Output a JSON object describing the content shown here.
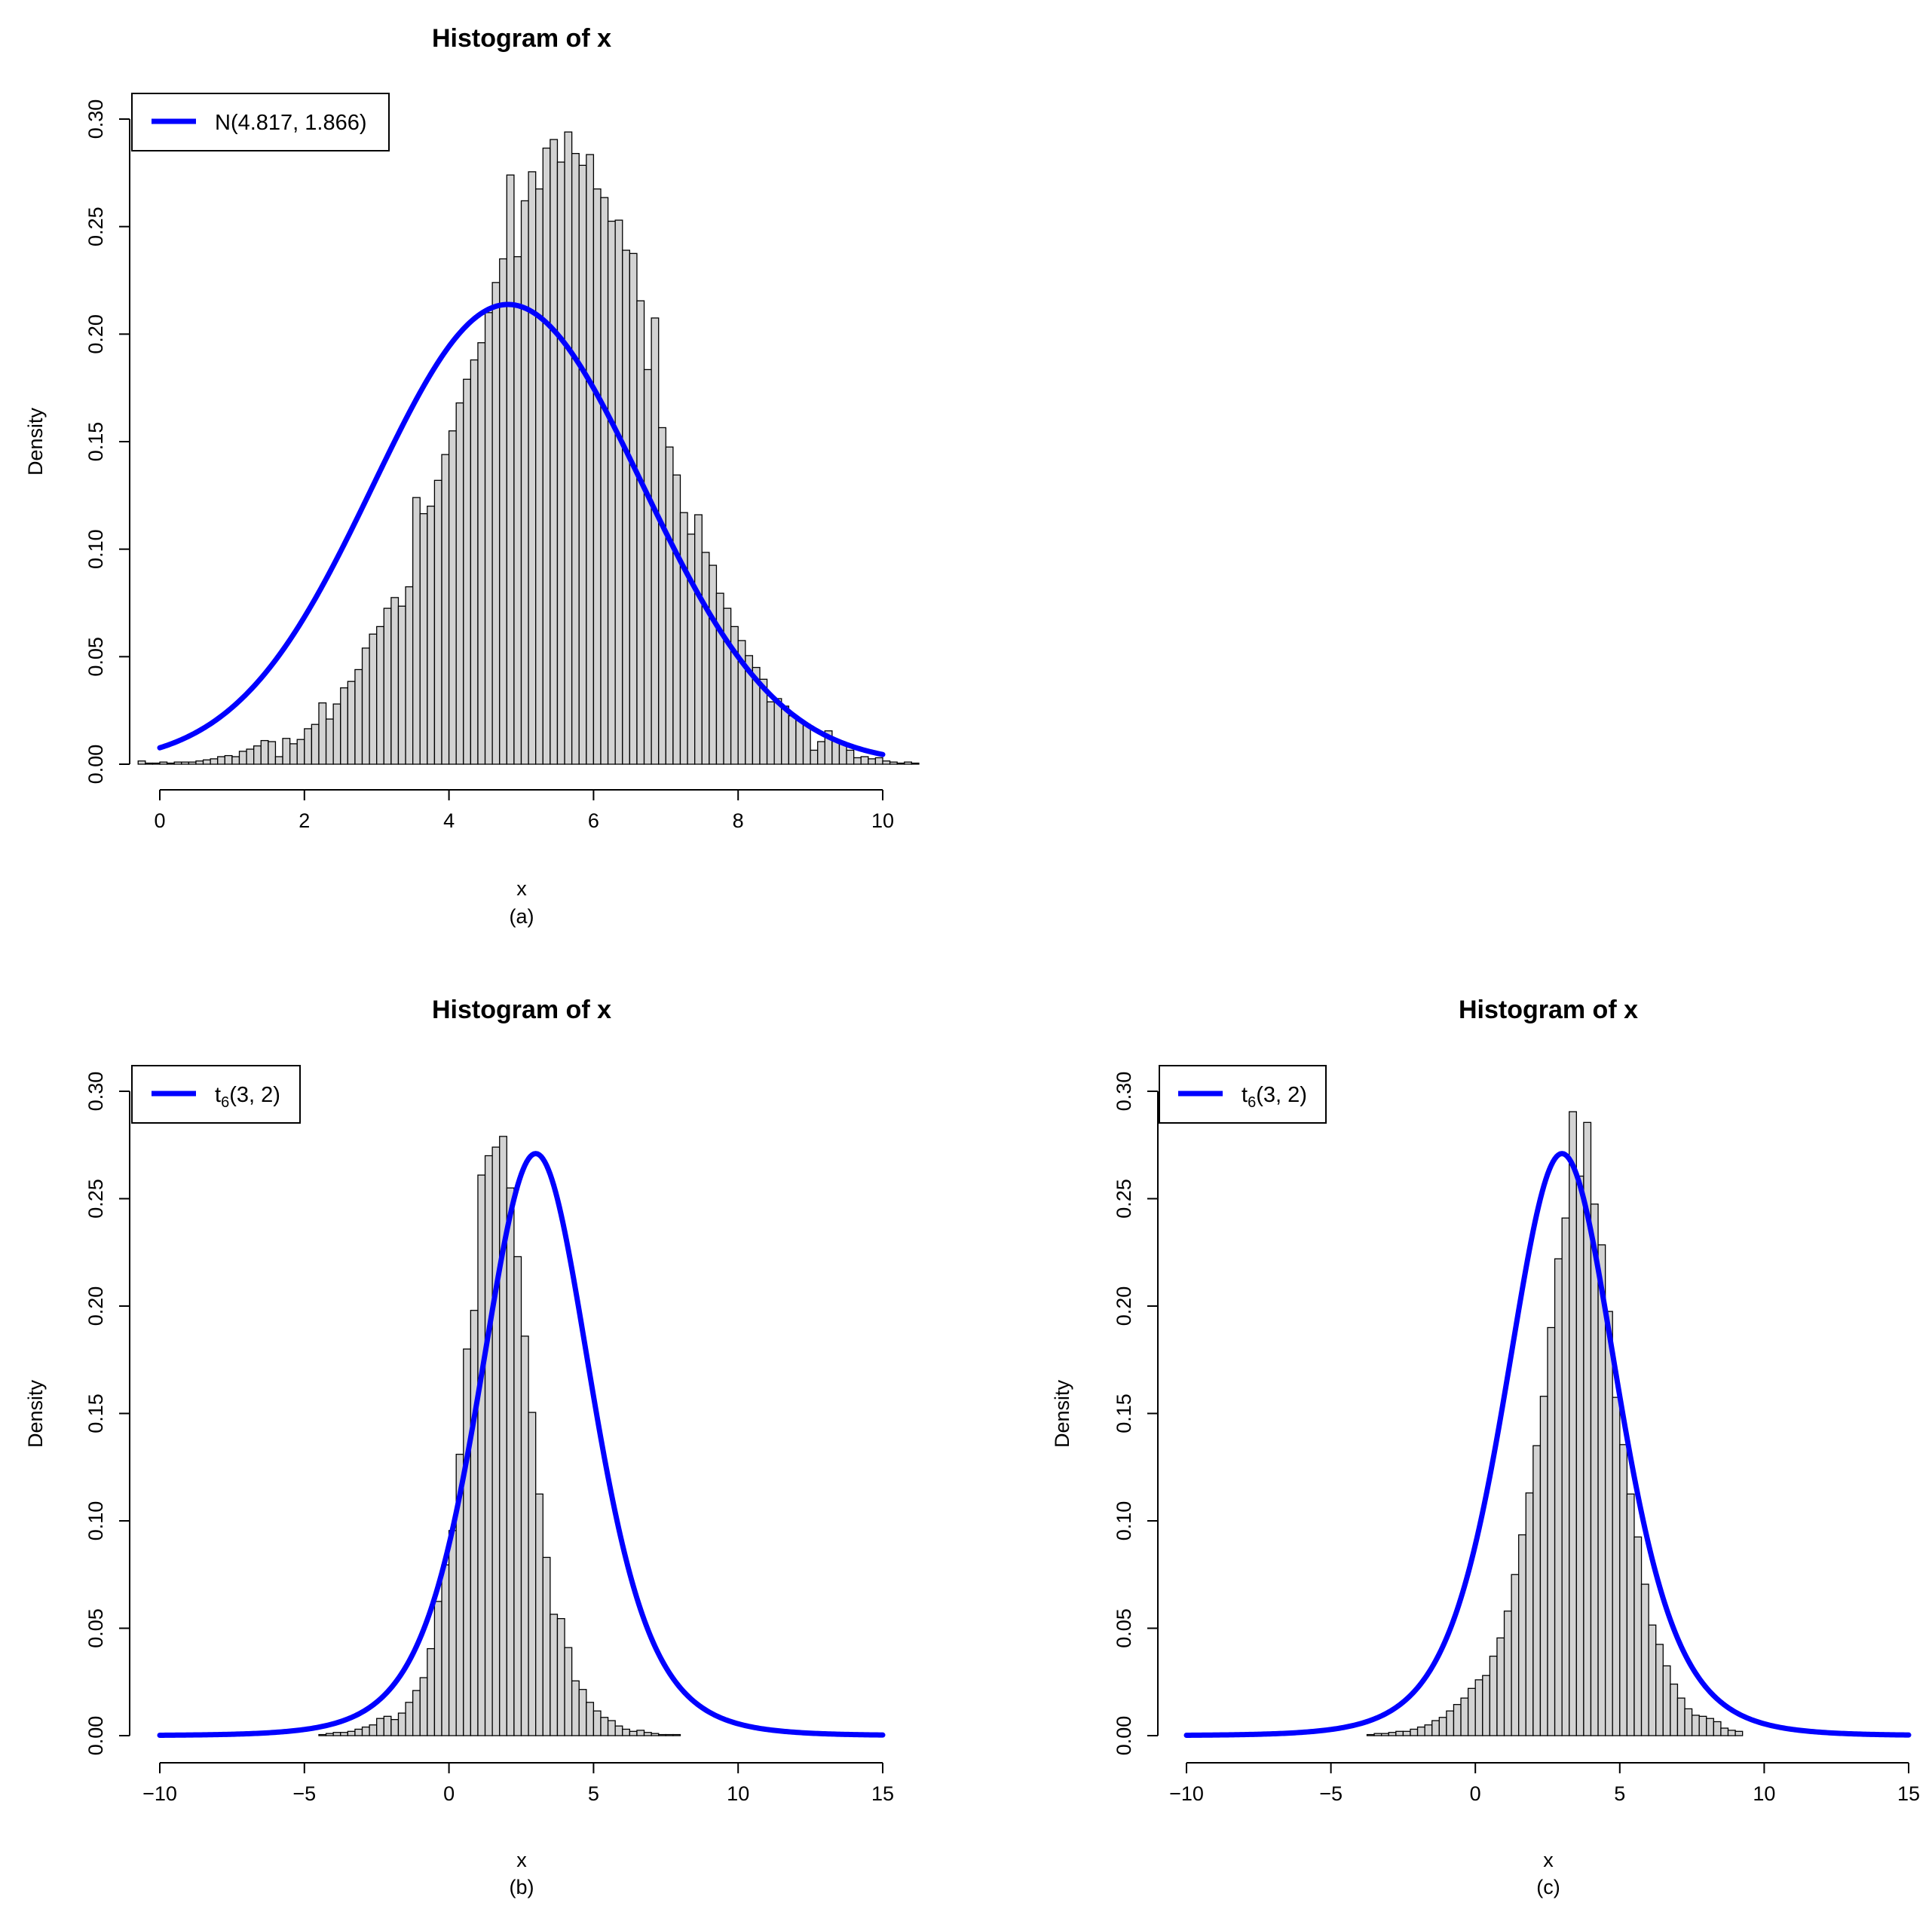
{
  "colors": {
    "bar_fill": "#d3d3d3",
    "bar_stroke": "#000000",
    "curve": "#0000ff",
    "axis": "#000000"
  },
  "chart_data": [
    {
      "panel": "a",
      "type": "bar",
      "title": "Histogram of x",
      "xlabel": "x",
      "ylabel": "Density",
      "caption": "(a)",
      "xlim": [
        0,
        10
      ],
      "ylim": [
        0,
        0.3
      ],
      "xticks": [
        0,
        2,
        4,
        6,
        8,
        10
      ],
      "xtick_labels": [
        "0",
        "2",
        "4",
        "6",
        "8",
        "10"
      ],
      "yticks": [
        0,
        0.05,
        0.1,
        0.15,
        0.2,
        0.25,
        0.3
      ],
      "ytick_labels": [
        "0.00",
        "0.05",
        "0.10",
        "0.15",
        "0.20",
        "0.25",
        "0.30"
      ],
      "legend": {
        "label_main": "N(4.817, 1.866)",
        "label_sub": "",
        "label_tail": "",
        "position": "top-left"
      },
      "bins": {
        "start": -0.3,
        "width": 0.1,
        "values": [
          0.0015,
          0.0005,
          0.0005,
          0.001,
          0.0005,
          0.001,
          0.001,
          0.001,
          0.0015,
          0.002,
          0.0025,
          0.0035,
          0.004,
          0.0035,
          0.006,
          0.007,
          0.0085,
          0.011,
          0.0105,
          0.0035,
          0.012,
          0.0095,
          0.0115,
          0.0165,
          0.0185,
          0.0285,
          0.021,
          0.028,
          0.0355,
          0.0385,
          0.044,
          0.054,
          0.0605,
          0.064,
          0.0725,
          0.0775,
          0.0735,
          0.0825,
          0.124,
          0.1165,
          0.12,
          0.132,
          0.144,
          0.155,
          0.168,
          0.179,
          0.188,
          0.196,
          0.21,
          0.224,
          0.235,
          0.274,
          0.236,
          0.262,
          0.2755,
          0.2675,
          0.2865,
          0.2905,
          0.28,
          0.294,
          0.284,
          0.2785,
          0.2835,
          0.2675,
          0.2635,
          0.2525,
          0.253,
          0.239,
          0.2375,
          0.2155,
          0.1835,
          0.2075,
          0.1565,
          0.1475,
          0.1345,
          0.117,
          0.107,
          0.116,
          0.0985,
          0.0925,
          0.0795,
          0.0725,
          0.064,
          0.0575,
          0.0505,
          0.045,
          0.0395,
          0.029,
          0.0305,
          0.027,
          0.0225,
          0.0205,
          0.0185,
          0.0065,
          0.0105,
          0.0155,
          0.011,
          0.0095,
          0.0065,
          0.003,
          0.0035,
          0.0025,
          0.003,
          0.0015,
          0.001,
          0.0005,
          0.001,
          0.0005
        ]
      },
      "curve": {
        "dist": "normal",
        "mean": 4.817,
        "sd": 1.866,
        "from": 0,
        "to": 10
      }
    },
    {
      "panel": "b",
      "type": "bar",
      "title": "Histogram of x",
      "xlabel": "x",
      "ylabel": "Density",
      "caption": "(b)",
      "xlim": [
        -10,
        15
      ],
      "ylim": [
        0,
        0.3
      ],
      "xticks": [
        -10,
        -5,
        0,
        5,
        10,
        15
      ],
      "xtick_labels": [
        "−10",
        "−5",
        "0",
        "5",
        "10",
        "15"
      ],
      "yticks": [
        0,
        0.05,
        0.1,
        0.15,
        0.2,
        0.25,
        0.3
      ],
      "ytick_labels": [
        "0.00",
        "0.05",
        "0.10",
        "0.15",
        "0.20",
        "0.25",
        "0.30"
      ],
      "legend": {
        "label_main": "t",
        "label_sub": "6",
        "label_tail": "(3, 2)",
        "position": "top-left"
      },
      "bins": {
        "start": -4.5,
        "width": 0.25,
        "values": [
          0.0005,
          0.001,
          0.0015,
          0.0015,
          0.002,
          0.003,
          0.004,
          0.005,
          0.008,
          0.009,
          0.0075,
          0.0105,
          0.0155,
          0.021,
          0.027,
          0.0405,
          0.0625,
          0.0795,
          0.0955,
          0.131,
          0.18,
          0.198,
          0.261,
          0.27,
          0.274,
          0.279,
          0.255,
          0.223,
          0.186,
          0.1505,
          0.1125,
          0.083,
          0.0565,
          0.0545,
          0.041,
          0.0255,
          0.0215,
          0.0155,
          0.0115,
          0.0085,
          0.007,
          0.0045,
          0.003,
          0.002,
          0.0025,
          0.0015,
          0.001,
          0.0005,
          0.0005,
          0.0005
        ]
      },
      "curve": {
        "dist": "t",
        "df": 6,
        "location": 3,
        "scale": 2,
        "peak": 0.271,
        "from": -10,
        "to": 15
      }
    },
    {
      "panel": "c",
      "type": "bar",
      "title": "Histogram of x",
      "xlabel": "x",
      "ylabel": "Density",
      "caption": "(c)",
      "xlim": [
        -10,
        15
      ],
      "ylim": [
        0,
        0.3
      ],
      "xticks": [
        -10,
        -5,
        0,
        5,
        10,
        15
      ],
      "xtick_labels": [
        "−10",
        "−5",
        "0",
        "5",
        "10",
        "15"
      ],
      "yticks": [
        0,
        0.05,
        0.1,
        0.15,
        0.2,
        0.25,
        0.3
      ],
      "ytick_labels": [
        "0.00",
        "0.05",
        "0.10",
        "0.15",
        "0.20",
        "0.25",
        "0.30"
      ],
      "legend": {
        "label_main": "t",
        "label_sub": "6",
        "label_tail": "(3, 2)",
        "position": "top-left"
      },
      "bins": {
        "start": -3.75,
        "width": 0.25,
        "values": [
          0.0005,
          0.001,
          0.001,
          0.0015,
          0.002,
          0.002,
          0.003,
          0.004,
          0.005,
          0.007,
          0.0085,
          0.0115,
          0.0145,
          0.0175,
          0.022,
          0.026,
          0.028,
          0.037,
          0.0455,
          0.058,
          0.075,
          0.0935,
          0.113,
          0.135,
          0.158,
          0.19,
          0.222,
          0.241,
          0.2905,
          0.2605,
          0.2855,
          0.2475,
          0.2285,
          0.1975,
          0.1575,
          0.1355,
          0.1125,
          0.0925,
          0.0705,
          0.0515,
          0.0425,
          0.0325,
          0.024,
          0.0175,
          0.0125,
          0.0095,
          0.009,
          0.008,
          0.0065,
          0.0035,
          0.0025,
          0.002
        ]
      },
      "curve": {
        "dist": "t",
        "df": 6,
        "location": 3,
        "scale": 2,
        "peak": 0.271,
        "from": -10,
        "to": 15
      }
    }
  ]
}
